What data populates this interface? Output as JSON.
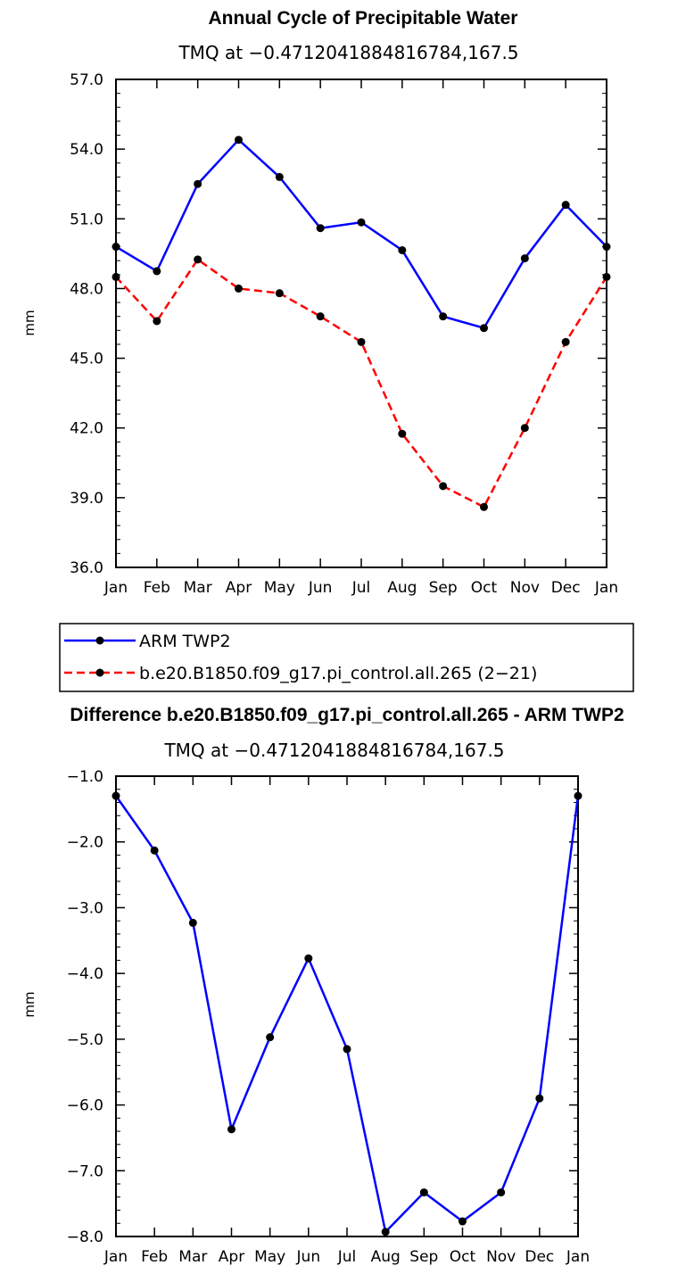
{
  "chart_data": [
    {
      "type": "line",
      "title": "Annual Cycle of Precipitable Water",
      "subtitle": "TMQ at −0.4712041884816784,167.5",
      "ylabel": "mm",
      "xlabel": "",
      "ylim": [
        36.0,
        57.0
      ],
      "yticks": [
        "36.0",
        "39.0",
        "42.0",
        "45.0",
        "48.0",
        "51.0",
        "54.0",
        "57.0"
      ],
      "categories": [
        "Jan",
        "Feb",
        "Mar",
        "Apr",
        "May",
        "Jun",
        "Jul",
        "Aug",
        "Sep",
        "Oct",
        "Nov",
        "Dec",
        "Jan"
      ],
      "series": [
        {
          "name": "ARM TWP2",
          "color": "#0000ff",
          "style": "solid",
          "values": [
            49.8,
            48.75,
            52.5,
            54.4,
            52.8,
            50.6,
            50.85,
            49.65,
            46.8,
            46.3,
            49.3,
            51.6,
            49.8
          ]
        },
        {
          "name": "b.e20.B1850.f09_g17.pi_control.all.265 (2−21)",
          "color": "#ff0000",
          "style": "dashed",
          "values": [
            48.5,
            46.6,
            49.25,
            48.0,
            47.8,
            46.8,
            45.7,
            41.75,
            39.5,
            38.6,
            42.0,
            45.7,
            48.5
          ]
        }
      ],
      "legend": "below"
    },
    {
      "type": "line",
      "title": "Difference b.e20.B1850.f09_g17.pi_control.all.265 - ARM TWP2",
      "subtitle": "TMQ at −0.4712041884816784,167.5",
      "ylabel": "mm",
      "xlabel": "",
      "ylim": [
        -8.0,
        -1.0
      ],
      "yticks": [
        "−8.0",
        "−7.0",
        "−6.0",
        "−5.0",
        "−4.0",
        "−3.0",
        "−2.0",
        "−1.0"
      ],
      "categories": [
        "Jan",
        "Feb",
        "Mar",
        "Apr",
        "May",
        "Jun",
        "Jul",
        "Aug",
        "Sep",
        "Oct",
        "Nov",
        "Dec",
        "Jan"
      ],
      "series": [
        {
          "color": "#0000ff",
          "style": "solid",
          "values": [
            -1.3,
            -2.13,
            -3.23,
            -6.37,
            -4.97,
            -3.77,
            -5.15,
            -7.93,
            -7.33,
            -7.77,
            -7.33,
            -5.9,
            -1.3
          ]
        }
      ]
    }
  ]
}
